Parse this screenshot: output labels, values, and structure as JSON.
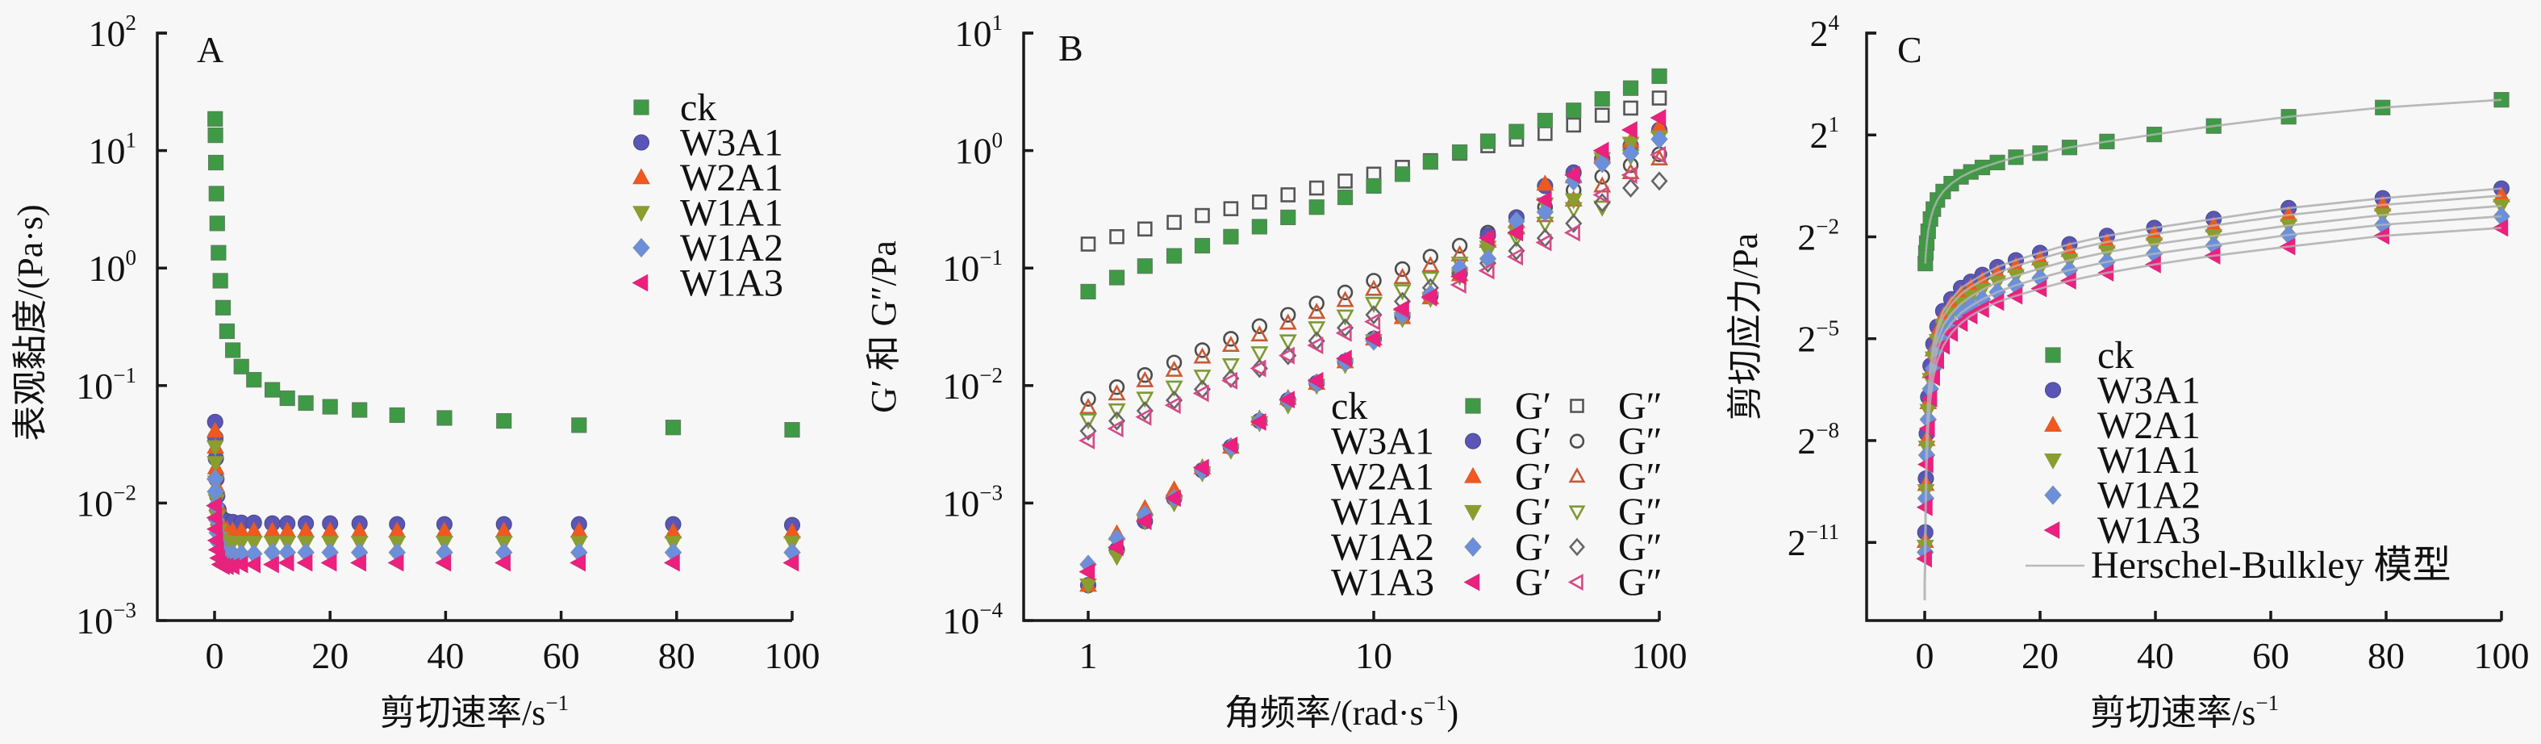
{
  "figure": {
    "background": "#f7f7f7",
    "series_styles": [
      {
        "name": "ck",
        "marker": "square",
        "color": "#3f9a45",
        "edge": "#5a7f5c",
        "open_color": "#555555"
      },
      {
        "name": "W3A1",
        "marker": "circle",
        "color": "#5b55b8",
        "edge": "#4a4f8a",
        "open_color": "#4d4d4d"
      },
      {
        "name": "W2A1",
        "marker": "triangle-up",
        "color": "#f2571e",
        "edge": "#d4602c",
        "open_color": "#c75a35"
      },
      {
        "name": "W1A1",
        "marker": "triangle-down",
        "color": "#8a9e2c",
        "edge": "#8a9a3a",
        "open_color": "#7f9a33"
      },
      {
        "name": "W1A2",
        "marker": "diamond",
        "color": "#6b8fdc",
        "edge": "#7a8fb0",
        "open_color": "#666666"
      },
      {
        "name": "W1A3",
        "marker": "triangle-left",
        "color": "#ee1f7f",
        "edge": "#d42b7a",
        "open_color": "#d44a88"
      }
    ],
    "fit_color": "#b9b9b9"
  },
  "chart_data": [
    {
      "panel": "A",
      "type": "scatter",
      "title": "",
      "xlabel": "剪切速率/s",
      "xlabel_sup": "−1",
      "ylabel": "表观黏度/(Pa·s)",
      "xscale": "linear",
      "yscale": "log10",
      "xlim": [
        -10,
        100
      ],
      "ylim": [
        0.001,
        100
      ],
      "xticks": [
        0,
        20,
        40,
        60,
        80,
        100
      ],
      "xtick_labels": [
        "0",
        "20",
        "40",
        "60",
        "80",
        "100"
      ],
      "yticks": [
        {
          "base": "10",
          "exp": "2",
          "value": 100
        },
        {
          "base": "10",
          "exp": "1",
          "value": 10
        },
        {
          "base": "10",
          "exp": "0",
          "value": 1
        },
        {
          "base": "10",
          "exp": "−1",
          "value": 0.1
        },
        {
          "base": "10",
          "exp": "−2",
          "value": 0.01
        },
        {
          "base": "10",
          "exp": "−3",
          "value": 0.001
        }
      ],
      "grid": false,
      "legend_position": "top-right",
      "x": [
        0.1,
        0.15,
        0.22,
        0.32,
        0.46,
        0.68,
        1.0,
        1.47,
        2.15,
        3.16,
        4.64,
        6.81,
        10,
        12.6,
        15.8,
        20,
        25.1,
        31.6,
        39.8,
        50.1,
        63.1,
        79.4,
        100
      ],
      "series": [
        {
          "name": "ck",
          "values": [
            18.6,
            13.5,
            7.9,
            4.3,
            2.4,
            1.35,
            0.78,
            0.46,
            0.29,
            0.2,
            0.145,
            0.112,
            0.092,
            0.078,
            0.071,
            0.066,
            0.062,
            0.056,
            0.053,
            0.05,
            0.046,
            0.044,
            0.042
          ]
        },
        {
          "name": "W3A1",
          "values": [
            0.049,
            0.036,
            0.024,
            0.016,
            0.0115,
            0.0088,
            0.0077,
            0.0072,
            0.007,
            0.0069,
            0.0068,
            0.0068,
            0.0067,
            0.0067,
            0.0067,
            0.0067,
            0.0067,
            0.0066,
            0.0066,
            0.0066,
            0.0066,
            0.0066,
            0.0065
          ]
        },
        {
          "name": "W2A1",
          "values": [
            0.041,
            0.03,
            0.02,
            0.014,
            0.0098,
            0.0074,
            0.0064,
            0.006,
            0.0059,
            0.0058,
            0.0058,
            0.0058,
            0.0058,
            0.0058,
            0.0058,
            0.0058,
            0.0058,
            0.0058,
            0.0058,
            0.0058,
            0.0058,
            0.0057,
            0.0057
          ]
        },
        {
          "name": "W1A1",
          "values": [
            0.03,
            0.022,
            0.015,
            0.0105,
            0.0076,
            0.0058,
            0.005,
            0.0047,
            0.0046,
            0.0046,
            0.0046,
            0.0046,
            0.0046,
            0.0046,
            0.0046,
            0.0046,
            0.0046,
            0.0046,
            0.0046,
            0.0046,
            0.0046,
            0.0046,
            0.0046
          ]
        },
        {
          "name": "W1A2",
          "values": [
            0.016,
            0.0125,
            0.0095,
            0.0072,
            0.0056,
            0.0046,
            0.004,
            0.0038,
            0.0037,
            0.0037,
            0.0037,
            0.0037,
            0.0038,
            0.0038,
            0.0038,
            0.0038,
            0.0038,
            0.0038,
            0.0038,
            0.0038,
            0.0038,
            0.0038,
            0.0038
          ]
        },
        {
          "name": "W1A3",
          "values": [
            0.0095,
            0.0075,
            0.006,
            0.0048,
            0.004,
            0.0034,
            0.003,
            0.0029,
            0.0029,
            0.0029,
            0.003,
            0.003,
            0.003,
            0.0031,
            0.0031,
            0.0031,
            0.0031,
            0.0031,
            0.0031,
            0.0031,
            0.0031,
            0.0031,
            0.0031
          ]
        }
      ],
      "panel_label": "A"
    },
    {
      "panel": "B",
      "type": "scatter",
      "title": "",
      "xlabel": "角频率/(rad·s",
      "xlabel_sup": "−1",
      "xlabel_tail": ")",
      "ylabel": "G′ 和 G″/Pa",
      "xscale": "log10",
      "yscale": "log10",
      "xlim": [
        0.8,
        100
      ],
      "ylim": [
        0.0001,
        10
      ],
      "xticks": [
        1,
        10,
        100
      ],
      "xtick_labels": [
        "1",
        "10",
        "100"
      ],
      "yticks": [
        {
          "base": "10",
          "exp": "1",
          "value": 10
        },
        {
          "base": "10",
          "exp": "0",
          "value": 1
        },
        {
          "base": "10",
          "exp": "−1",
          "value": 0.1
        },
        {
          "base": "10",
          "exp": "−2",
          "value": 0.01
        },
        {
          "base": "10",
          "exp": "−3",
          "value": 0.001
        },
        {
          "base": "10",
          "exp": "−4",
          "value": 0.0001
        }
      ],
      "grid": false,
      "legend_position": "bottom-right",
      "legend_gprime": "G′",
      "legend_gdouble": "G″",
      "x": [
        1,
        1.26,
        1.58,
        2,
        2.51,
        3.16,
        3.98,
        5.01,
        6.31,
        7.94,
        10,
        12.6,
        15.8,
        20,
        25.1,
        31.6,
        39.8,
        50.1,
        63.1,
        79.4,
        100
      ],
      "series": [
        {
          "name": "ck",
          "G_prime": [
            0.063,
            0.083,
            0.104,
            0.127,
            0.155,
            0.185,
            0.225,
            0.27,
            0.33,
            0.4,
            0.5,
            0.63,
            0.8,
            0.97,
            1.2,
            1.45,
            1.8,
            2.2,
            2.75,
            3.4,
            4.3
          ],
          "G_double_prime": [
            0.16,
            0.185,
            0.215,
            0.245,
            0.28,
            0.32,
            0.365,
            0.42,
            0.48,
            0.55,
            0.63,
            0.72,
            0.82,
            0.95,
            1.1,
            1.25,
            1.4,
            1.65,
            2.0,
            2.3,
            2.8
          ]
        },
        {
          "name": "W3A1",
          "G_prime": [
            0.0002,
            0.0004,
            0.0007,
            0.0011,
            0.0019,
            0.003,
            0.005,
            0.0075,
            0.0105,
            0.016,
            0.025,
            0.039,
            0.058,
            0.09,
            0.19,
            0.27,
            0.5,
            0.65,
            0.85,
            1.1,
            1.5
          ],
          "G_double_prime": [
            0.0077,
            0.0097,
            0.0123,
            0.0157,
            0.02,
            0.025,
            0.032,
            0.04,
            0.05,
            0.062,
            0.078,
            0.098,
            0.125,
            0.155,
            0.2,
            0.26,
            0.33,
            0.46,
            0.6,
            0.75,
            0.93
          ]
        },
        {
          "name": "W2A1",
          "G_prime": [
            0.0002,
            0.00055,
            0.0009,
            0.0013,
            0.002,
            0.003,
            0.0052,
            0.0078,
            0.0105,
            0.016,
            0.025,
            0.038,
            0.056,
            0.088,
            0.17,
            0.25,
            0.52,
            0.6,
            0.9,
            1.2,
            1.6
          ],
          "G_double_prime": [
            0.0065,
            0.0085,
            0.011,
            0.0135,
            0.0175,
            0.022,
            0.027,
            0.034,
            0.042,
            0.053,
            0.066,
            0.083,
            0.105,
            0.13,
            0.17,
            0.22,
            0.28,
            0.38,
            0.5,
            0.65,
            0.85
          ]
        },
        {
          "name": "W1A1",
          "G_prime": [
            0.0002,
            0.00035,
            0.0007,
            0.001,
            0.0018,
            0.0028,
            0.0048,
            0.0068,
            0.01,
            0.015,
            0.024,
            0.037,
            0.055,
            0.085,
            0.15,
            0.2,
            0.35,
            0.38,
            0.85,
            1.15,
            1.3
          ],
          "G_double_prime": [
            0.0051,
            0.0062,
            0.0078,
            0.0097,
            0.012,
            0.015,
            0.019,
            0.024,
            0.031,
            0.039,
            0.05,
            0.064,
            0.082,
            0.11,
            0.14,
            0.18,
            0.24,
            0.32,
            0.33,
            0.9,
            1.3
          ]
        },
        {
          "name": "W1A2",
          "G_prime": [
            0.0003,
            0.0005,
            0.0008,
            0.0011,
            0.0019,
            0.003,
            0.005,
            0.0075,
            0.0105,
            0.016,
            0.024,
            0.04,
            0.06,
            0.1,
            0.12,
            0.25,
            0.3,
            0.55,
            0.78,
            0.95,
            1.25
          ],
          "G_double_prime": [
            0.0041,
            0.005,
            0.0061,
            0.0075,
            0.0093,
            0.0115,
            0.014,
            0.018,
            0.024,
            0.031,
            0.04,
            0.052,
            0.068,
            0.09,
            0.11,
            0.14,
            0.18,
            0.24,
            0.36,
            0.48,
            0.55
          ]
        },
        {
          "name": "W1A3",
          "G_prime": [
            0.00026,
            0.00042,
            0.0007,
            0.0011,
            0.002,
            0.0031,
            0.0049,
            0.0076,
            0.011,
            0.017,
            0.025,
            0.045,
            0.057,
            0.085,
            0.18,
            0.2,
            0.38,
            0.62,
            1.0,
            1.5,
            1.9
          ],
          "G_double_prime": [
            0.0034,
            0.0043,
            0.0054,
            0.0068,
            0.0086,
            0.011,
            0.014,
            0.018,
            0.022,
            0.028,
            0.035,
            0.044,
            0.056,
            0.072,
            0.095,
            0.125,
            0.165,
            0.2,
            0.42,
            0.62,
            0.92
          ]
        }
      ],
      "panel_label": "B"
    },
    {
      "panel": "C",
      "type": "scatter",
      "title": "",
      "xlabel": "剪切速率/s",
      "xlabel_sup": "−1",
      "ylabel": "剪切应力/Pa",
      "xscale": "linear",
      "yscale": "log2",
      "xlim": [
        -10,
        100
      ],
      "ylim_log2": [
        -13.3,
        4
      ],
      "xticks": [
        0,
        20,
        40,
        60,
        80,
        100
      ],
      "xtick_labels": [
        "0",
        "20",
        "40",
        "60",
        "80",
        "100"
      ],
      "yticks": [
        {
          "base": "2",
          "exp": "4",
          "value": 16
        },
        {
          "base": "2",
          "exp": "1",
          "value": 2
        },
        {
          "base": "2",
          "exp": "−2",
          "value": 0.25
        },
        {
          "base": "2",
          "exp": "−5",
          "value": 0.03125
        },
        {
          "base": "2",
          "exp": "−8",
          "value": 0.00390625
        },
        {
          "base": "2",
          "exp": "−11",
          "value": 0.00048828125
        }
      ],
      "grid": false,
      "legend_position": "bottom-right",
      "fit_label": "Herschel-Bulkley 模型",
      "x": [
        0.1,
        0.2,
        0.35,
        0.6,
        1.0,
        1.5,
        2.2,
        3.2,
        4.6,
        6.3,
        8.0,
        10,
        12.6,
        15.8,
        20,
        25.1,
        31.6,
        39.8,
        50.1,
        63.1,
        79.4,
        100
      ],
      "series": [
        {
          "name": "ck",
          "values": [
            0.145,
            0.18,
            0.22,
            0.28,
            0.36,
            0.44,
            0.53,
            0.63,
            0.74,
            0.85,
            0.94,
            1.03,
            1.14,
            1.27,
            1.38,
            1.55,
            1.75,
            2.02,
            2.4,
            2.9,
            3.5,
            4.1
          ]
        },
        {
          "name": "W3A1",
          "values": [
            0.0006,
            0.0018,
            0.0045,
            0.0095,
            0.018,
            0.028,
            0.04,
            0.055,
            0.07,
            0.088,
            0.1,
            0.115,
            0.135,
            0.155,
            0.18,
            0.215,
            0.255,
            0.3,
            0.36,
            0.45,
            0.55,
            0.67
          ]
        },
        {
          "name": "W2A1",
          "values": [
            0.0005,
            0.0016,
            0.004,
            0.0085,
            0.016,
            0.025,
            0.036,
            0.049,
            0.063,
            0.078,
            0.09,
            0.103,
            0.12,
            0.138,
            0.16,
            0.19,
            0.225,
            0.265,
            0.315,
            0.39,
            0.48,
            0.58
          ]
        },
        {
          "name": "W1A1",
          "values": [
            0.00045,
            0.0014,
            0.0034,
            0.0072,
            0.0135,
            0.021,
            0.03,
            0.041,
            0.052,
            0.064,
            0.074,
            0.085,
            0.099,
            0.113,
            0.131,
            0.155,
            0.183,
            0.215,
            0.255,
            0.315,
            0.39,
            0.47
          ]
        },
        {
          "name": "W1A2",
          "values": [
            0.0004,
            0.0012,
            0.0029,
            0.006,
            0.0112,
            0.017,
            0.025,
            0.034,
            0.043,
            0.053,
            0.061,
            0.07,
            0.081,
            0.093,
            0.108,
            0.127,
            0.15,
            0.177,
            0.21,
            0.26,
            0.32,
            0.38
          ]
        },
        {
          "name": "W1A3",
          "values": [
            0.00035,
            0.001,
            0.0024,
            0.005,
            0.0092,
            0.0142,
            0.02,
            0.027,
            0.035,
            0.043,
            0.05,
            0.057,
            0.066,
            0.075,
            0.087,
            0.102,
            0.12,
            0.142,
            0.17,
            0.205,
            0.255,
            0.3
          ]
        }
      ],
      "panel_label": "C"
    }
  ]
}
